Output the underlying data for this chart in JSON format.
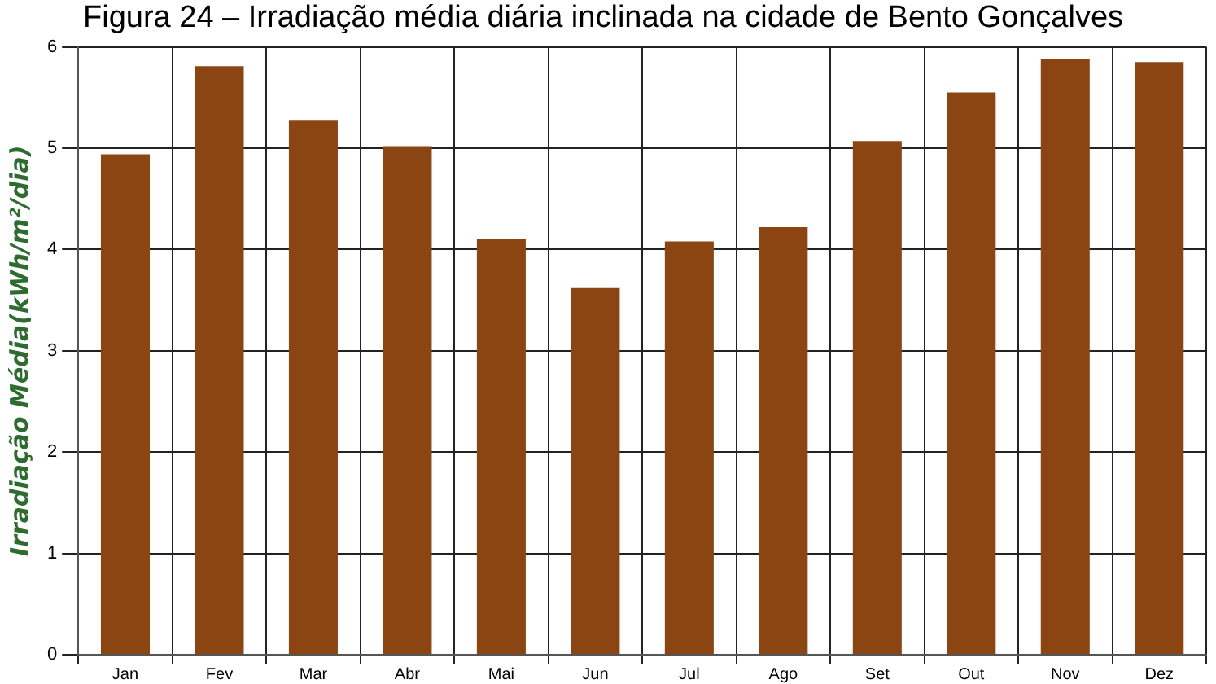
{
  "chart_data": {
    "type": "bar",
    "title": "Figura 24 – Irradiação média diária inclinada na cidade de Bento Gonçalves",
    "ylabel": "Irradiação Média(kWh/m²/dia)",
    "categories": [
      "Jan",
      "Fev",
      "Mar",
      "Abr",
      "Mai",
      "Jun",
      "Jul",
      "Ago",
      "Set",
      "Out",
      "Nov",
      "Dez"
    ],
    "values": [
      4.94,
      5.81,
      5.28,
      5.02,
      4.1,
      3.62,
      4.08,
      4.22,
      5.07,
      5.55,
      5.88,
      5.85
    ],
    "color": "#8b4513",
    "ylim": [
      0,
      6
    ],
    "yticks": [
      0,
      1,
      2,
      3,
      4,
      5,
      6
    ],
    "grid": true
  }
}
